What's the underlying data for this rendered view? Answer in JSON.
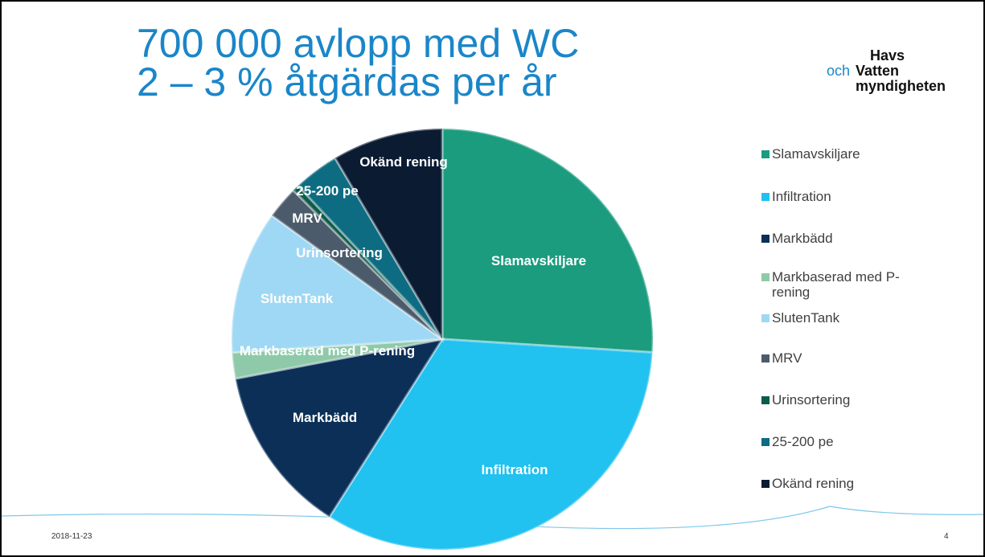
{
  "chart_data": {
    "type": "pie",
    "title": [
      "700 000 avlopp med WC",
      "2 – 3 % åtgärdas per år"
    ],
    "categories": [
      "Slamavskiljare",
      "Infiltration",
      "Markbädd",
      "Markbaserad med P-rening",
      "SlutenTank",
      "MRV",
      "Urinsortering",
      "25-200 pe",
      "Okänd rening"
    ],
    "values": [
      26,
      33,
      13,
      2,
      11,
      2.5,
      0.5,
      3.5,
      8.5
    ],
    "colors": [
      "#1b9c7e",
      "#21c1f0",
      "#0b2f57",
      "#8ecaa9",
      "#9fd8f4",
      "#4b5b6b",
      "#0d5b4b",
      "#0e6c82",
      "#0a1b32"
    ],
    "legend": "right"
  },
  "logo": {
    "lines": [
      "Havs",
      "och",
      "Vatten",
      "myndigheten"
    ]
  },
  "footer": {
    "date": "2018-11-23",
    "page": "4"
  }
}
